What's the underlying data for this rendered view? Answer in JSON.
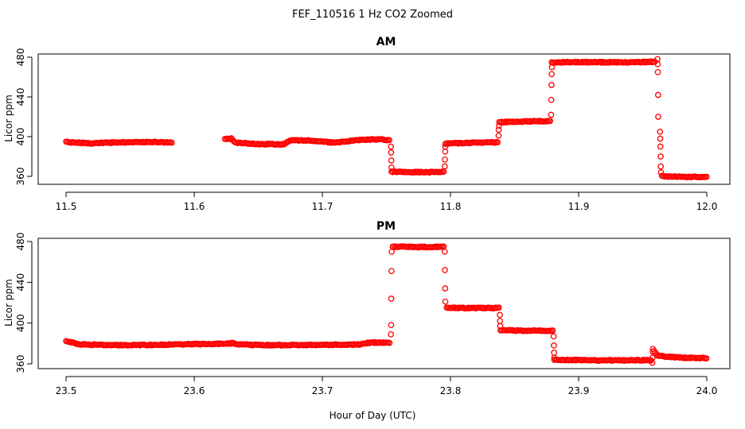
{
  "figure": {
    "title": "FEF_110516  1 Hz CO2 Zoomed",
    "xlabel": "Hour of Day (UTC)"
  },
  "chart_data": [
    {
      "type": "scatter",
      "title": "AM",
      "xlabel": "",
      "ylabel": "Licor ppm",
      "xlim": [
        11.5,
        12.0
      ],
      "ylim": [
        360,
        480
      ],
      "xticks": [
        "11.5",
        "11.6",
        "11.7",
        "11.8",
        "11.9",
        "12.0"
      ],
      "yticks": [
        "360",
        "400",
        "440",
        "480"
      ],
      "grid": false,
      "series_color": "#ff0000",
      "segments": [
        {
          "x0": 11.5,
          "x1": 11.583,
          "points": [
            [
              11.5,
              394.5
            ],
            [
              11.52,
              393.3
            ],
            [
              11.54,
              394.2
            ],
            [
              11.56,
              394.6
            ],
            [
              11.583,
              394.3
            ]
          ]
        },
        {
          "x0": 11.624,
          "x1": 11.753,
          "points": [
            [
              11.624,
              397.8
            ],
            [
              11.629,
              398.0
            ],
            [
              11.632,
              394.0
            ],
            [
              11.65,
              392.5
            ],
            [
              11.67,
              392.3
            ],
            [
              11.675,
              396.5
            ],
            [
              11.69,
              396.0
            ],
            [
              11.71,
              393.8
            ],
            [
              11.73,
              396.8
            ],
            [
              11.745,
              397.4
            ],
            [
              11.753,
              396.3
            ]
          ]
        },
        {
          "x0": 11.754,
          "x1": 11.795,
          "points": [
            [
              11.754,
              364.8
            ],
            [
              11.775,
              364.2
            ],
            [
              11.795,
              364.5
            ]
          ]
        },
        {
          "x0": 11.796,
          "x1": 11.837,
          "points": [
            [
              11.796,
              393.0
            ],
            [
              11.815,
              393.8
            ],
            [
              11.837,
              394.3
            ]
          ]
        },
        {
          "x0": 11.838,
          "x1": 11.878,
          "points": [
            [
              11.838,
              414.5
            ],
            [
              11.86,
              415.4
            ],
            [
              11.878,
              415.8
            ]
          ]
        },
        {
          "x0": 11.879,
          "x1": 11.96,
          "points": [
            [
              11.879,
              474.8
            ],
            [
              11.91,
              475.0
            ],
            [
              11.94,
              474.8
            ],
            [
              11.96,
              475.5
            ]
          ]
        },
        {
          "x0": 11.965,
          "x1": 12.0,
          "points": [
            [
              11.965,
              360.2
            ],
            [
              11.98,
              359.5
            ],
            [
              12.0,
              359.5
            ]
          ]
        }
      ],
      "transitions": [
        {
          "x": 11.7535,
          "values": [
            390,
            384,
            376,
            369
          ]
        },
        {
          "x": 11.7955,
          "values": [
            370,
            377,
            385,
            390
          ]
        },
        {
          "x": 11.8375,
          "values": [
            401,
            407,
            411
          ]
        },
        {
          "x": 11.8785,
          "values": [
            422,
            437,
            452,
            463,
            470
          ]
        },
        {
          "x": 11.9615,
          "values": [
            478,
            473,
            465,
            442,
            420
          ]
        },
        {
          "x": 11.9635,
          "values": [
            405,
            398,
            390,
            380,
            370,
            364
          ]
        }
      ]
    },
    {
      "type": "scatter",
      "title": "PM",
      "xlabel": "",
      "ylabel": "Licor ppm",
      "xlim": [
        23.5,
        24.0
      ],
      "ylim": [
        360,
        480
      ],
      "xticks": [
        "23.5",
        "23.6",
        "23.7",
        "23.8",
        "23.9",
        "24.0"
      ],
      "yticks": [
        "360",
        "400",
        "440",
        "480"
      ],
      "grid": false,
      "series_color": "#ff0000",
      "segments": [
        {
          "x0": 23.5,
          "x1": 23.753,
          "points": [
            [
              23.5,
              382.2
            ],
            [
              23.504,
              381.2
            ],
            [
              23.51,
              379.2
            ],
            [
              23.54,
              378.3
            ],
            [
              23.57,
              378.6
            ],
            [
              23.6,
              379.4
            ],
            [
              23.628,
              379.8
            ],
            [
              23.63,
              381.0
            ],
            [
              23.633,
              379.0
            ],
            [
              23.66,
              378.3
            ],
            [
              23.7,
              378.6
            ],
            [
              23.73,
              379.0
            ],
            [
              23.735,
              380.6
            ],
            [
              23.745,
              381.0
            ],
            [
              23.753,
              380.4
            ]
          ]
        },
        {
          "x0": 23.755,
          "x1": 23.795,
          "points": [
            [
              23.755,
              475.0
            ],
            [
              23.775,
              474.6
            ],
            [
              23.795,
              474.9
            ]
          ]
        },
        {
          "x0": 23.797,
          "x1": 23.838,
          "points": [
            [
              23.797,
              415.0
            ],
            [
              23.815,
              414.7
            ],
            [
              23.838,
              414.8
            ]
          ]
        },
        {
          "x0": 23.839,
          "x1": 23.88,
          "points": [
            [
              23.839,
              392.8
            ],
            [
              23.86,
              392.5
            ],
            [
              23.88,
              392.4
            ]
          ]
        },
        {
          "x0": 23.881,
          "x1": 23.957,
          "points": [
            [
              23.881,
              364.0
            ],
            [
              23.92,
              363.4
            ],
            [
              23.957,
              363.5
            ]
          ]
        },
        {
          "x0": 23.958,
          "x1": 24.0,
          "points": [
            [
              23.958,
              374.5
            ],
            [
              23.962,
              367.8
            ],
            [
              23.98,
              366.0
            ],
            [
              24.0,
              365.8
            ]
          ]
        }
      ],
      "transitions": [
        {
          "x": 23.7535,
          "values": [
            389,
            398,
            424,
            451,
            470
          ]
        },
        {
          "x": 23.7955,
          "values": [
            470,
            452,
            434,
            421
          ]
        },
        {
          "x": 23.8385,
          "values": [
            408,
            402,
            397
          ]
        },
        {
          "x": 23.8805,
          "values": [
            387,
            378,
            371,
            366
          ]
        },
        {
          "x": 23.9575,
          "values": [
            361,
            366,
            372
          ]
        }
      ]
    }
  ]
}
